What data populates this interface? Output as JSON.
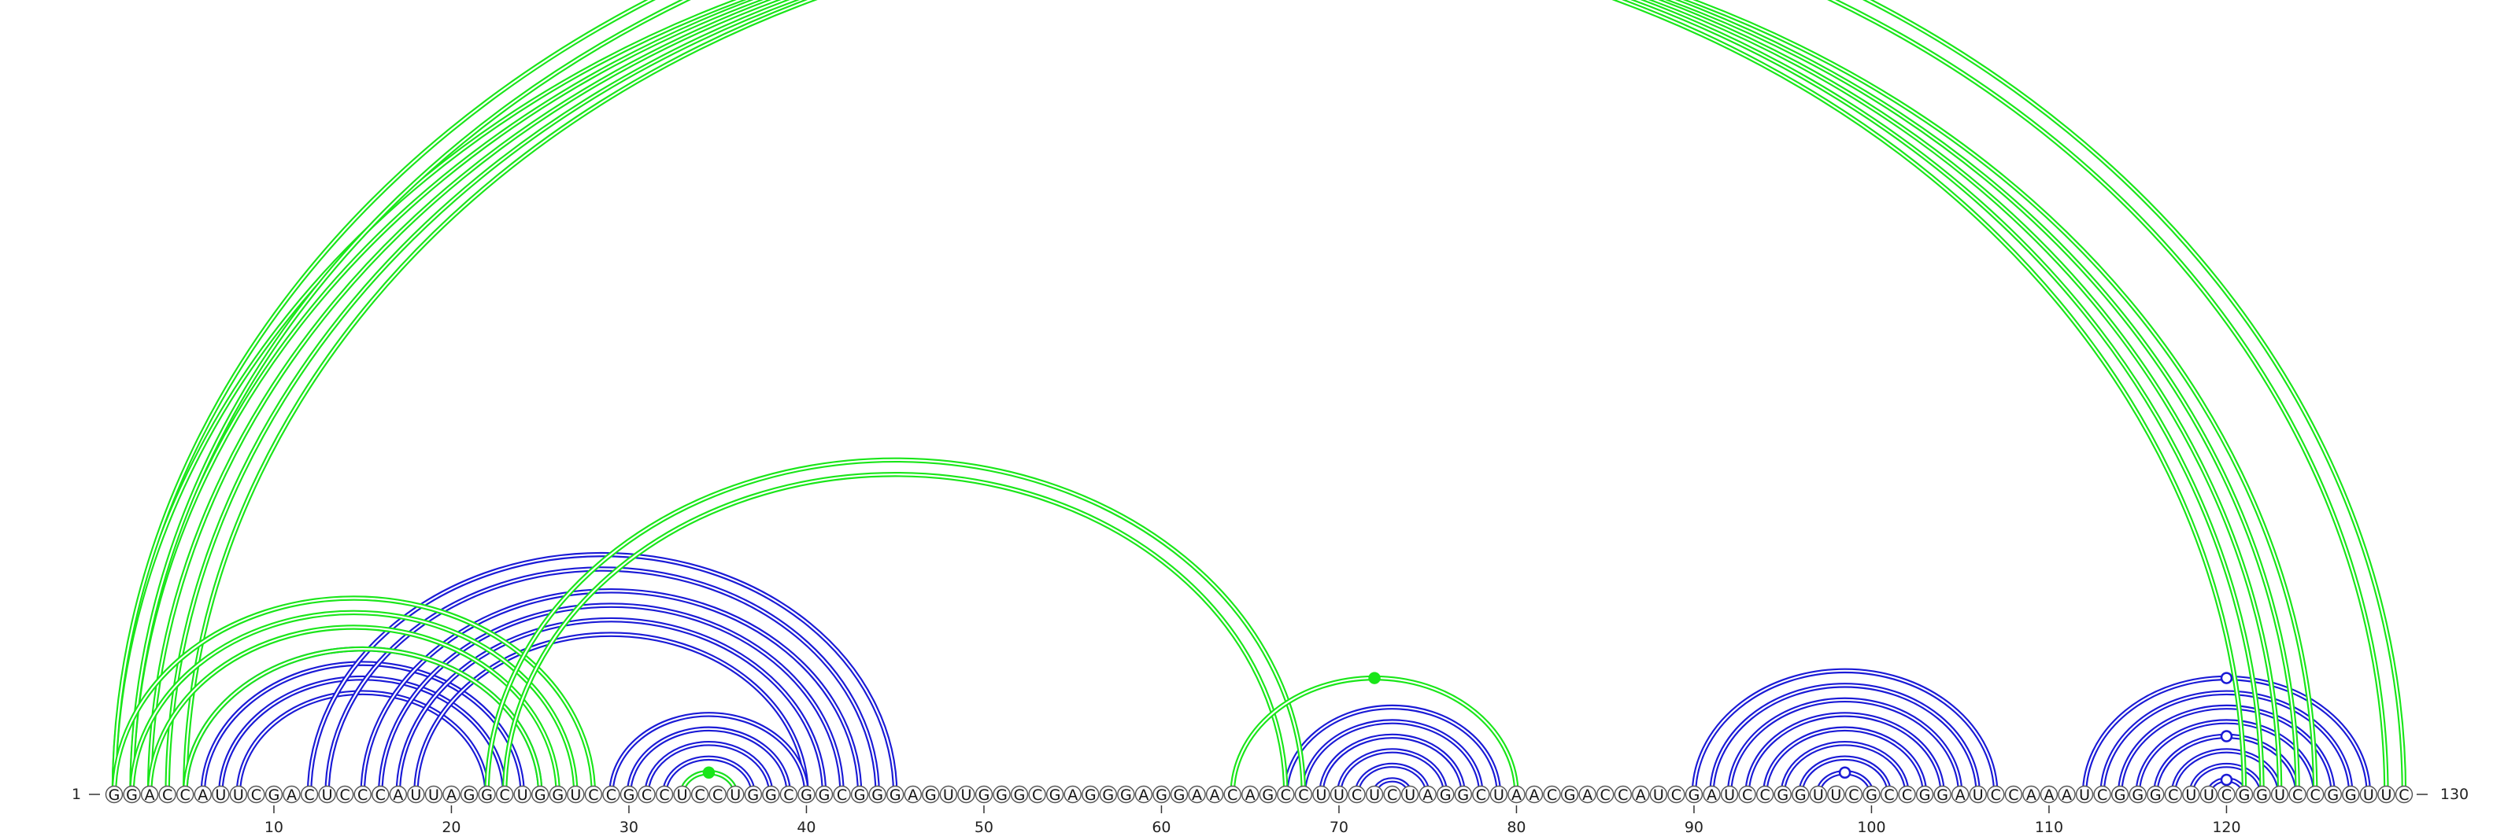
{
  "sequence": "GGACCAUUCGACUCCCAUUAGGCUGGUCCGCCUCCUGGCGGCGGGAGUUGGGCGAGGGAGGAACAGCCUUCUCUAGGCUAACGACCAUCGAUCCGGUUCGCCGGAUCCAAAUCGGGCUUCGGUCCGGUUC",
  "labels": {
    "start": "1",
    "end": "130"
  },
  "ticks": [
    10,
    20,
    30,
    40,
    50,
    60,
    70,
    80,
    90,
    100,
    110,
    120
  ],
  "colors": {
    "set_a": "#1a1ad6",
    "set_b": "#19e619",
    "nucleotide_stroke": "#555555"
  },
  "arc_sets": {
    "blue": [
      [
        5,
        25
      ],
      [
        6,
        24
      ],
      [
        7,
        23
      ],
      [
        8,
        22
      ],
      [
        12,
        45
      ],
      [
        13,
        44
      ],
      [
        15,
        43
      ],
      [
        16,
        42
      ],
      [
        17,
        41
      ],
      [
        18,
        40
      ],
      [
        29,
        40
      ],
      [
        30,
        39
      ],
      [
        31,
        38
      ],
      [
        32,
        37
      ],
      [
        33,
        36
      ],
      [
        67,
        79
      ],
      [
        68,
        78
      ],
      [
        69,
        77
      ],
      [
        70,
        76
      ],
      [
        71,
        75
      ],
      [
        72,
        74
      ],
      [
        90,
        107
      ],
      [
        91,
        106
      ],
      [
        92,
        105
      ],
      [
        93,
        104
      ],
      [
        94,
        103
      ],
      [
        95,
        102
      ],
      [
        96,
        101
      ],
      [
        97,
        100
      ],
      [
        112,
        128
      ],
      [
        113,
        127
      ],
      [
        114,
        126
      ],
      [
        115,
        125
      ],
      [
        116,
        124
      ],
      [
        117,
        123
      ],
      [
        118,
        122
      ],
      [
        119,
        121
      ]
    ],
    "green": [
      [
        1,
        121
      ],
      [
        2,
        122
      ],
      [
        3,
        123
      ],
      [
        4,
        124
      ],
      [
        5,
        125
      ],
      [
        2,
        129
      ],
      [
        1,
        130
      ],
      [
        1,
        28
      ],
      [
        2,
        27
      ],
      [
        3,
        26
      ],
      [
        5,
        25
      ],
      [
        22,
        68
      ],
      [
        23,
        67
      ],
      [
        33,
        36
      ],
      [
        64,
        80
      ]
    ]
  }
}
